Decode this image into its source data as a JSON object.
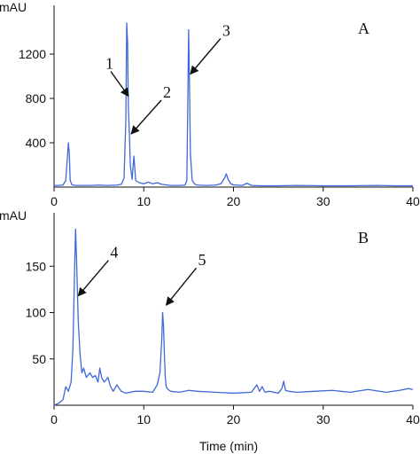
{
  "colors": {
    "trace": "#3f68d8",
    "axis": "#111111",
    "annotation": "#111111"
  },
  "chart_data": [
    {
      "type": "line",
      "panel_label": "A",
      "y_unit": "mAU",
      "xlim": [
        0,
        40
      ],
      "ylim": [
        0,
        1600
      ],
      "x_ticks": [
        0,
        10,
        20,
        30,
        40
      ],
      "x_tick_labels": [
        "0",
        "10",
        "20",
        "30",
        "40"
      ],
      "y_ticks": [
        400,
        800,
        1200
      ],
      "y_tick_labels": [
        "400",
        "800",
        "1200"
      ],
      "series": [
        {
          "x": [
            0.0,
            0.5,
            1.0,
            1.3,
            1.5,
            1.6,
            1.7,
            1.8,
            2.0,
            2.5,
            3.0,
            4.0,
            5.0,
            6.0,
            7.0,
            7.5,
            7.8,
            8.0,
            8.1,
            8.2,
            8.25,
            8.3,
            8.4,
            8.5,
            8.7,
            8.9,
            9.1,
            9.5,
            10.0,
            10.5,
            11.0,
            11.5,
            12.0,
            12.5,
            13.0,
            14.0,
            14.6,
            14.8,
            14.9,
            15.0,
            15.1,
            15.2,
            15.4,
            15.7,
            16.0,
            17.0,
            18.0,
            18.6,
            19.0,
            19.2,
            19.4,
            19.7,
            20.0,
            21.0,
            21.5,
            22.0,
            23.0,
            25.0,
            27.0,
            30.0,
            33.0,
            36.0,
            38.0,
            39.0,
            40.0
          ],
          "y": [
            15,
            15,
            18,
            60,
            280,
            400,
            300,
            60,
            20,
            15,
            15,
            15,
            18,
            15,
            18,
            25,
            80,
            600,
            1480,
            1300,
            900,
            680,
            480,
            200,
            70,
            280,
            60,
            40,
            30,
            45,
            30,
            40,
            25,
            20,
            15,
            15,
            18,
            60,
            700,
            1420,
            900,
            300,
            60,
            25,
            18,
            15,
            18,
            30,
            80,
            120,
            70,
            30,
            20,
            15,
            35,
            15,
            12,
            12,
            15,
            12,
            12,
            15,
            12,
            12,
            12
          ]
        }
      ],
      "annotations": [
        {
          "label": "1",
          "x": 8.1,
          "y": 820
        },
        {
          "label": "2",
          "x": 8.4,
          "y": 480
        },
        {
          "label": "3",
          "x": 15.0,
          "y": 1020
        }
      ]
    },
    {
      "type": "line",
      "panel_label": "B",
      "y_unit": "mAU",
      "xlim": [
        0,
        40
      ],
      "ylim": [
        0,
        200
      ],
      "x_ticks": [
        0,
        10,
        20,
        30,
        40
      ],
      "x_tick_labels": [
        "0",
        "10",
        "20",
        "30",
        "40"
      ],
      "y_ticks": [
        50,
        100,
        150
      ],
      "y_tick_labels": [
        "50",
        "100",
        "150"
      ],
      "xlabel": "Time (min)",
      "series": [
        {
          "x": [
            0.0,
            0.5,
            1.0,
            1.3,
            1.6,
            1.9,
            2.1,
            2.3,
            2.4,
            2.5,
            2.7,
            2.9,
            3.1,
            3.3,
            3.6,
            4.0,
            4.3,
            4.6,
            4.9,
            5.1,
            5.3,
            5.6,
            6.0,
            6.3,
            6.6,
            7.0,
            7.5,
            8.0,
            9.0,
            10.0,
            11.0,
            11.5,
            11.8,
            12.0,
            12.1,
            12.2,
            12.3,
            12.4,
            12.5,
            12.7,
            13.0,
            14.0,
            15.0,
            16.0,
            18.0,
            20.0,
            22.0,
            22.6,
            22.9,
            23.2,
            23.5,
            24.0,
            25.0,
            25.4,
            25.6,
            25.8,
            26.2,
            27.0,
            29.0,
            31.0,
            33.0,
            35.0,
            37.0,
            38.5,
            39.5,
            40.0
          ],
          "y": [
            0,
            2,
            6,
            20,
            15,
            25,
            60,
            150,
            190,
            160,
            90,
            55,
            35,
            40,
            30,
            35,
            30,
            32,
            25,
            40,
            30,
            25,
            30,
            20,
            15,
            22,
            15,
            13,
            15,
            15,
            14,
            22,
            35,
            70,
            100,
            85,
            55,
            30,
            20,
            17,
            15,
            14,
            16,
            15,
            14,
            13,
            14,
            22,
            15,
            20,
            14,
            15,
            13,
            18,
            26,
            16,
            15,
            14,
            15,
            16,
            14,
            17,
            14,
            16,
            18,
            17
          ]
        }
      ],
      "annotations": [
        {
          "label": "4",
          "x": 2.5,
          "y": 118
        },
        {
          "label": "5",
          "x": 12.3,
          "y": 108
        }
      ]
    }
  ]
}
